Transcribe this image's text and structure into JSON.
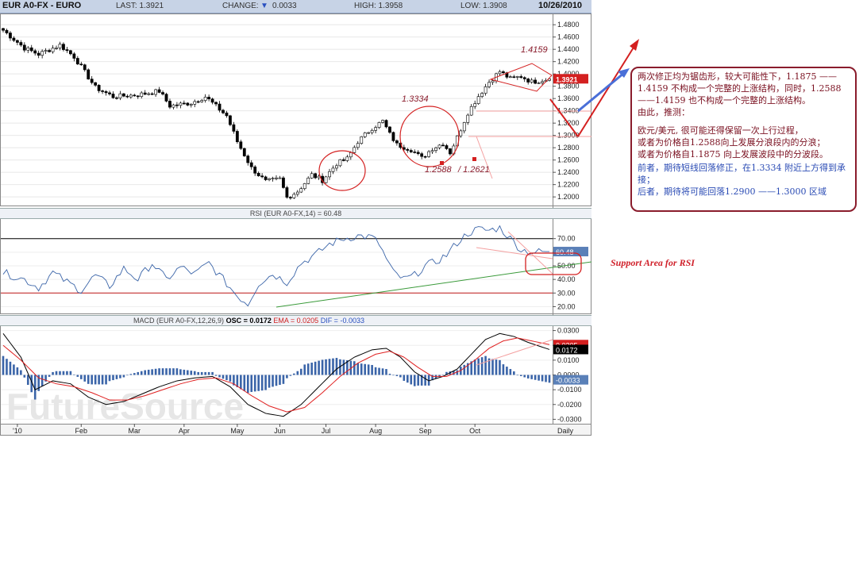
{
  "header": {
    "symbol": "EUR A0-FX - EURO",
    "last": "LAST: 1.3921",
    "change_label": "CHANGE:",
    "change_value": "0.0033",
    "high": "HIGH: 1.3958",
    "low": "LOW: 1.3908",
    "date": "10/26/2010"
  },
  "chart_data": [
    {
      "type": "candlestick",
      "title": "EUR A0-FX - EURO",
      "ylim": [
        1.186,
        1.497
      ],
      "y_ticks": [
        "1.4800",
        "1.4600",
        "1.4400",
        "1.4200",
        "1.4000",
        "1.3800",
        "1.3600",
        "1.3400",
        "1.3200",
        "1.3000",
        "1.2800",
        "1.2600",
        "1.2400",
        "1.2200",
        "1.2000"
      ],
      "x_ticks": [
        "'10",
        "Feb",
        "Mar",
        "Apr",
        "May",
        "Jun",
        "Jul",
        "Aug",
        "Sep",
        "Oct",
        "Daily"
      ],
      "x_tick_index": [
        4,
        22,
        37,
        51,
        66,
        78,
        91,
        105,
        119,
        133,
        150
      ],
      "n_days": 155,
      "close_anchors": [
        [
          0,
          1.471
        ],
        [
          6,
          1.442
        ],
        [
          10,
          1.432
        ],
        [
          16,
          1.447
        ],
        [
          20,
          1.428
        ],
        [
          26,
          1.378
        ],
        [
          31,
          1.363
        ],
        [
          38,
          1.366
        ],
        [
          44,
          1.372
        ],
        [
          47,
          1.348
        ],
        [
          53,
          1.353
        ],
        [
          57,
          1.363
        ],
        [
          63,
          1.332
        ],
        [
          66,
          1.29
        ],
        [
          70,
          1.247
        ],
        [
          74,
          1.225
        ],
        [
          78,
          1.229
        ],
        [
          80,
          1.199
        ],
        [
          83,
          1.209
        ],
        [
          87,
          1.236
        ],
        [
          90,
          1.227
        ],
        [
          94,
          1.254
        ],
        [
          97,
          1.262
        ],
        [
          100,
          1.29
        ],
        [
          104,
          1.312
        ],
        [
          107,
          1.323
        ],
        [
          109,
          1.302
        ],
        [
          111,
          1.285
        ],
        [
          115,
          1.277
        ],
        [
          118,
          1.263
        ],
        [
          121,
          1.279
        ],
        [
          124,
          1.287
        ],
        [
          126,
          1.272
        ],
        [
          128,
          1.297
        ],
        [
          131,
          1.337
        ],
        [
          134,
          1.364
        ],
        [
          137,
          1.387
        ],
        [
          140,
          1.404
        ],
        [
          143,
          1.392
        ],
        [
          146,
          1.396
        ],
        [
          149,
          1.387
        ],
        [
          154,
          1.3921
        ]
      ],
      "last_price": "1.3921",
      "annotations": [
        "1.4159",
        "1.3334",
        "1.2588",
        "/ 1.2621"
      ]
    },
    {
      "type": "line",
      "title": "RSI (EUR A0-FX,14) = 60.48",
      "ylim": [
        15,
        85
      ],
      "y_ticks": [
        "70.00",
        "60.00",
        "50.00",
        "40.00",
        "30.00",
        "20.00"
      ],
      "reference_lines": [
        70,
        30
      ],
      "anchors": [
        [
          0,
          45
        ],
        [
          6,
          40
        ],
        [
          10,
          34
        ],
        [
          14,
          45
        ],
        [
          18,
          38
        ],
        [
          22,
          32
        ],
        [
          26,
          43
        ],
        [
          30,
          35
        ],
        [
          34,
          48
        ],
        [
          38,
          40
        ],
        [
          42,
          52
        ],
        [
          46,
          40
        ],
        [
          50,
          49
        ],
        [
          54,
          44
        ],
        [
          58,
          52
        ],
        [
          62,
          40
        ],
        [
          66,
          28
        ],
        [
          69,
          22
        ],
        [
          72,
          37
        ],
        [
          76,
          44
        ],
        [
          80,
          38
        ],
        [
          84,
          52
        ],
        [
          88,
          58
        ],
        [
          92,
          66
        ],
        [
          96,
          70
        ],
        [
          100,
          72
        ],
        [
          104,
          71
        ],
        [
          106,
          66
        ],
        [
          108,
          55
        ],
        [
          110,
          45
        ],
        [
          113,
          40
        ],
        [
          116,
          43
        ],
        [
          119,
          50
        ],
        [
          122,
          53
        ],
        [
          125,
          58
        ],
        [
          128,
          67
        ],
        [
          131,
          74
        ],
        [
          134,
          77
        ],
        [
          137,
          76
        ],
        [
          140,
          78
        ],
        [
          143,
          70
        ],
        [
          146,
          62
        ],
        [
          149,
          60
        ],
        [
          154,
          60.48
        ]
      ],
      "last_value": "60.48"
    },
    {
      "type": "line",
      "title": "MACD (EUR A0-FX,12,26,9)",
      "osc": "OSC = 0.0172",
      "ema": "EMA = 0.0205",
      "dif": "DIF = -0.0033",
      "ylim": [
        -0.033,
        0.033
      ],
      "y_ticks": [
        "0.0300",
        "0.0200",
        "0.0100",
        "0.0000",
        "-0.0100",
        "-0.0200",
        "-0.0300"
      ],
      "macd_anchors": [
        [
          0,
          0.028
        ],
        [
          5,
          0.012
        ],
        [
          9,
          -0.01
        ],
        [
          14,
          -0.004
        ],
        [
          19,
          -0.006
        ],
        [
          24,
          -0.015
        ],
        [
          29,
          -0.02
        ],
        [
          34,
          -0.018
        ],
        [
          39,
          -0.013
        ],
        [
          44,
          -0.008
        ],
        [
          49,
          -0.004
        ],
        [
          54,
          -0.002
        ],
        [
          59,
          -0.001
        ],
        [
          64,
          -0.008
        ],
        [
          69,
          -0.02
        ],
        [
          74,
          -0.026
        ],
        [
          79,
          -0.028
        ],
        [
          84,
          -0.02
        ],
        [
          89,
          -0.008
        ],
        [
          94,
          0.004
        ],
        [
          99,
          0.012
        ],
        [
          104,
          0.017
        ],
        [
          108,
          0.018
        ],
        [
          112,
          0.012
        ],
        [
          116,
          0.002
        ],
        [
          120,
          -0.004
        ],
        [
          124,
          -0.001
        ],
        [
          128,
          0.004
        ],
        [
          132,
          0.014
        ],
        [
          136,
          0.024
        ],
        [
          140,
          0.028
        ],
        [
          144,
          0.026
        ],
        [
          148,
          0.022
        ],
        [
          154,
          0.0172
        ]
      ],
      "signal_anchors": [
        [
          0,
          0.02
        ],
        [
          5,
          0.01
        ],
        [
          10,
          -0.002
        ],
        [
          15,
          -0.006
        ],
        [
          20,
          -0.008
        ],
        [
          25,
          -0.012
        ],
        [
          30,
          -0.017
        ],
        [
          35,
          -0.017
        ],
        [
          40,
          -0.014
        ],
        [
          45,
          -0.01
        ],
        [
          50,
          -0.006
        ],
        [
          55,
          -0.003
        ],
        [
          60,
          -0.002
        ],
        [
          65,
          -0.006
        ],
        [
          70,
          -0.014
        ],
        [
          75,
          -0.021
        ],
        [
          80,
          -0.025
        ],
        [
          85,
          -0.022
        ],
        [
          90,
          -0.012
        ],
        [
          95,
          -0.001
        ],
        [
          100,
          0.008
        ],
        [
          105,
          0.014
        ],
        [
          109,
          0.016
        ],
        [
          113,
          0.012
        ],
        [
          117,
          0.005
        ],
        [
          121,
          -0.001
        ],
        [
          125,
          -0.001
        ],
        [
          129,
          0.003
        ],
        [
          133,
          0.01
        ],
        [
          137,
          0.018
        ],
        [
          141,
          0.023
        ],
        [
          145,
          0.025
        ],
        [
          149,
          0.023
        ],
        [
          154,
          0.0205
        ]
      ],
      "macd_last": "0.0172",
      "signal_last": "0.0205",
      "dif_last": "-0.0033"
    }
  ],
  "overlay": {
    "rsi_support_label": "Support Area for  RSI"
  },
  "note": {
    "p1": "两次修正均为锯齿形，较大可能性下，1.1875 ——1.4159 不构成一个完整的上涨结构，同时，1.2588 ——1.4159 也不构成一个完整的上涨结构。",
    "p2": "由此，推测：",
    "p3": "欧元/美元, 很可能还得保留一次上行过程，",
    "p4": "或者为价格自1.2588向上发展分浪段内的分浪；",
    "p5": "或者为价格自1.1875 向上发展波段中的分波段。",
    "p6": "前者，期待短线回落修正，在1.3334 附近上方得到承接；",
    "p7": "后者，期待将可能回落1.2900 ——1.3000 区域"
  },
  "colors": {
    "up": "#ffffff",
    "down": "#000000",
    "rsi_line": "#3a64a8",
    "macd_line": "#000000",
    "signal_line": "#e02020",
    "histogram": "#3a64a8",
    "annotation_red": "#d42020",
    "annotation_blue": "#4a6fd8",
    "trend_green": "#3a9a3a"
  }
}
